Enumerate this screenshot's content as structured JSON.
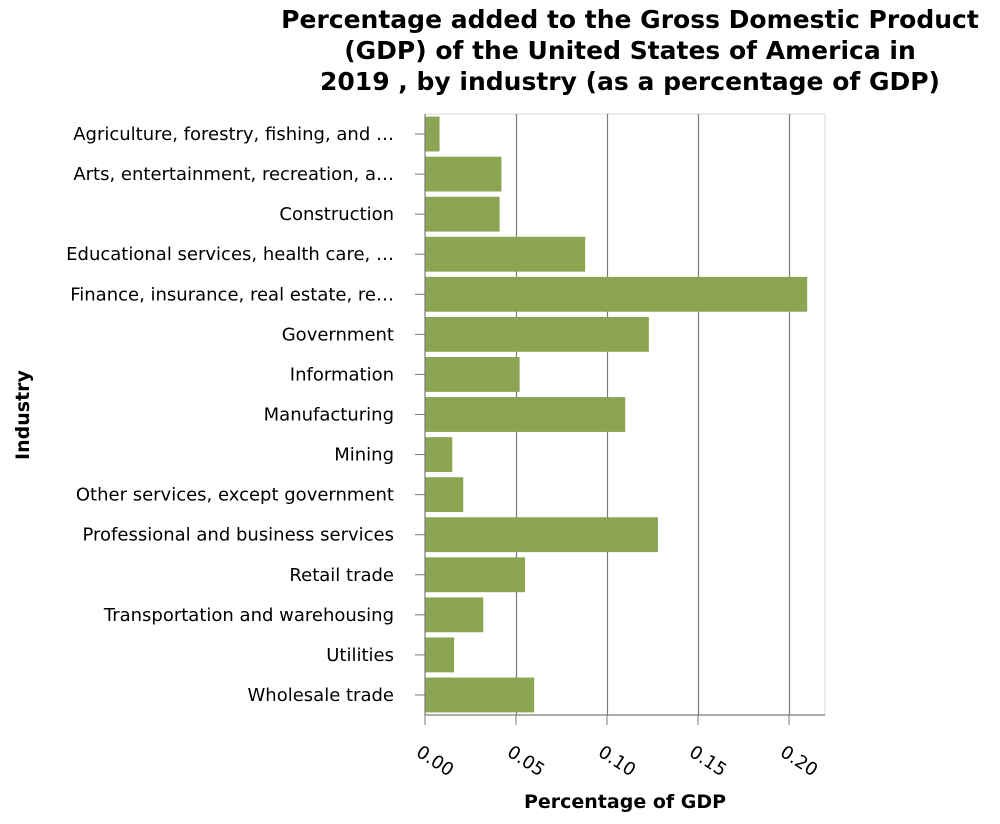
{
  "chart_data": {
    "type": "bar",
    "orientation": "horizontal",
    "title_lines": [
      "Percentage added to the Gross Domestic Product",
      "(GDP) of the United States of America in",
      "2019 , by industry (as a percentage of GDP)"
    ],
    "xlabel": "Percentage of GDP",
    "ylabel": "Industry",
    "categories": [
      "Agriculture, forestry, fishing, and …",
      "Arts, entertainment, recreation, a…",
      "Construction",
      "Educational services, health care, …",
      "Finance, insurance, real estate, re…",
      "Government",
      "Information",
      "Manufacturing",
      "Mining",
      "Other services, except government",
      "Professional and business services",
      "Retail trade",
      "Transportation and warehousing",
      "Utilities",
      "Wholesale trade"
    ],
    "values": [
      0.008,
      0.042,
      0.041,
      0.088,
      0.21,
      0.123,
      0.052,
      0.11,
      0.015,
      0.021,
      0.128,
      0.055,
      0.032,
      0.016,
      0.06
    ],
    "xlim": [
      0,
      0.22
    ],
    "xticks": [
      0,
      0.05,
      0.1,
      0.15,
      0.2
    ],
    "xtick_labels": [
      "0.00",
      "0.05",
      "0.10",
      "0.15",
      "0.20"
    ],
    "grid": "vertical",
    "legend": "none",
    "colors": {
      "bar": "#8ba552",
      "grid": "#7a7a7a",
      "axis": "#7a7a7a",
      "frame": "#d9d9d9"
    }
  }
}
